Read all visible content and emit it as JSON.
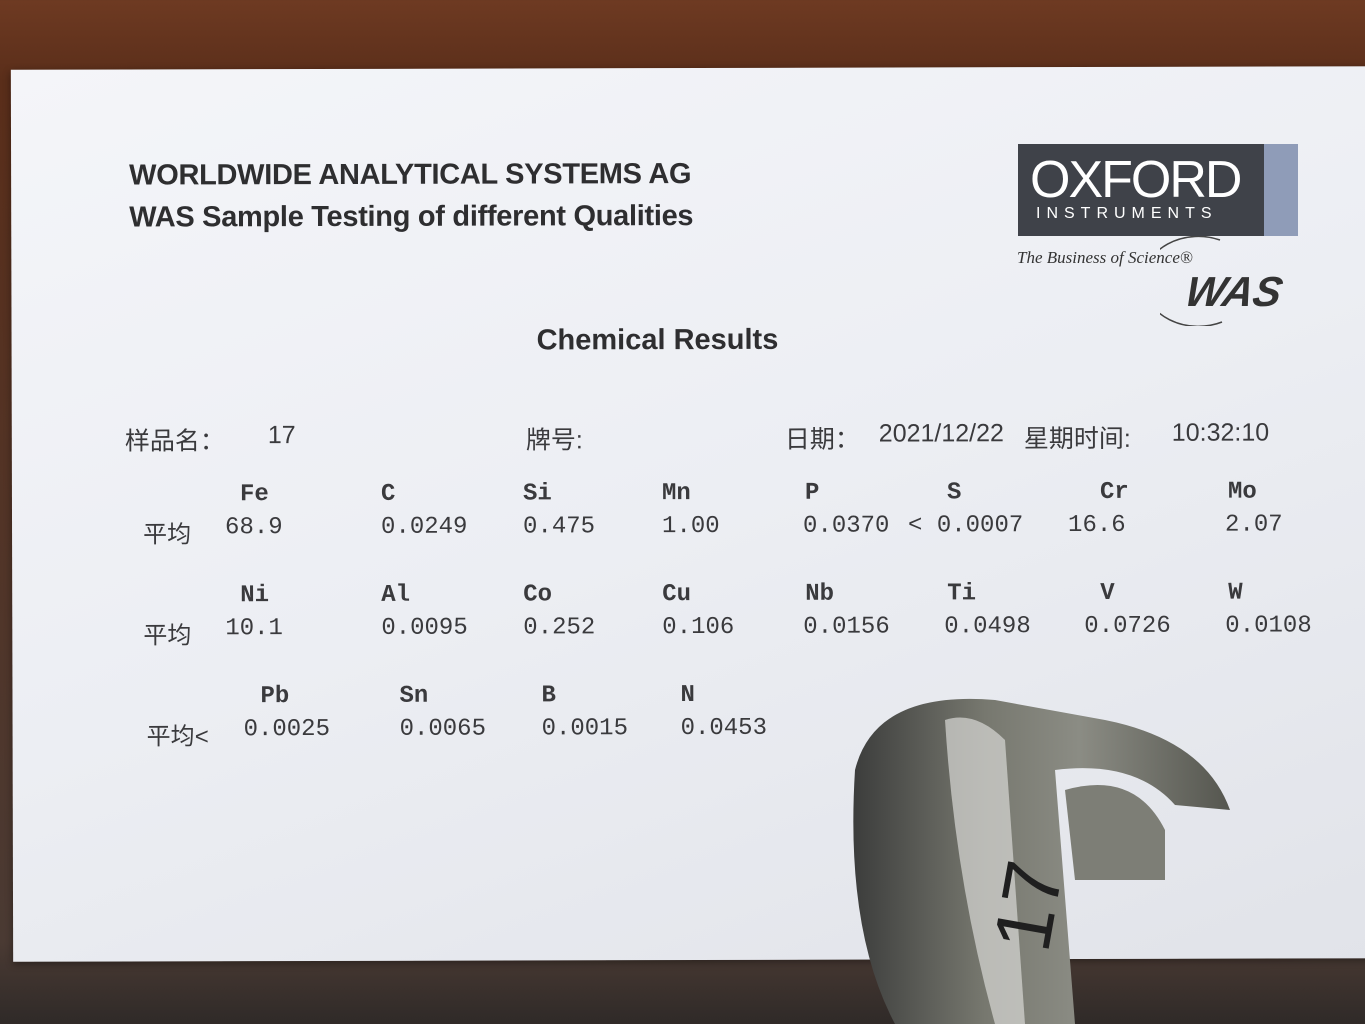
{
  "header": {
    "company": "WORLDWIDE ANALYTICAL SYSTEMS AG",
    "subtitle": "WAS Sample Testing of different Qualities"
  },
  "logo": {
    "brand": "OXFORD",
    "sub": "INSTRUMENTS",
    "tagline": "The Business of Science®",
    "mark": "WAS",
    "colors": {
      "dark": "#3f4249",
      "strip": "#8f9cb8"
    }
  },
  "report_title": "Chemical Results",
  "meta": {
    "sample_label": "样品名：",
    "sample_value": "17",
    "grade_label": "牌号:",
    "grade_value": "",
    "date_label": "日期：",
    "date_value": "2021/12/22",
    "time_label": "星期时间:",
    "time_value": "10:32:10"
  },
  "rows": [
    {
      "prefix": "平均",
      "elements": [
        {
          "symbol": "Fe",
          "value": "68.9"
        },
        {
          "symbol": "C",
          "value": "0.0249"
        },
        {
          "symbol": "Si",
          "value": "0.475"
        },
        {
          "symbol": "Mn",
          "value": "1.00"
        },
        {
          "symbol": "P",
          "value": "0.0370"
        },
        {
          "symbol": "S",
          "value": "< 0.0007"
        },
        {
          "symbol": "Cr",
          "value": "16.6"
        },
        {
          "symbol": "Mo",
          "value": "2.07"
        }
      ]
    },
    {
      "prefix": "平均",
      "elements": [
        {
          "symbol": "Ni",
          "value": "10.1"
        },
        {
          "symbol": "Al",
          "value": "0.0095"
        },
        {
          "symbol": "Co",
          "value": "0.252"
        },
        {
          "symbol": "Cu",
          "value": "0.106"
        },
        {
          "symbol": "Nb",
          "value": "0.0156"
        },
        {
          "symbol": "Ti",
          "value": "0.0498"
        },
        {
          "symbol": "V",
          "value": "0.0726"
        },
        {
          "symbol": "W",
          "value": "0.0108"
        }
      ]
    },
    {
      "prefix": "平均<",
      "elements": [
        {
          "symbol": "Pb",
          "value": "0.0025"
        },
        {
          "symbol": "Sn",
          "value": "0.0065"
        },
        {
          "symbol": "B",
          "value": "0.0015"
        },
        {
          "symbol": "N",
          "value": "0.0453"
        }
      ]
    }
  ],
  "sample_marking": "17"
}
